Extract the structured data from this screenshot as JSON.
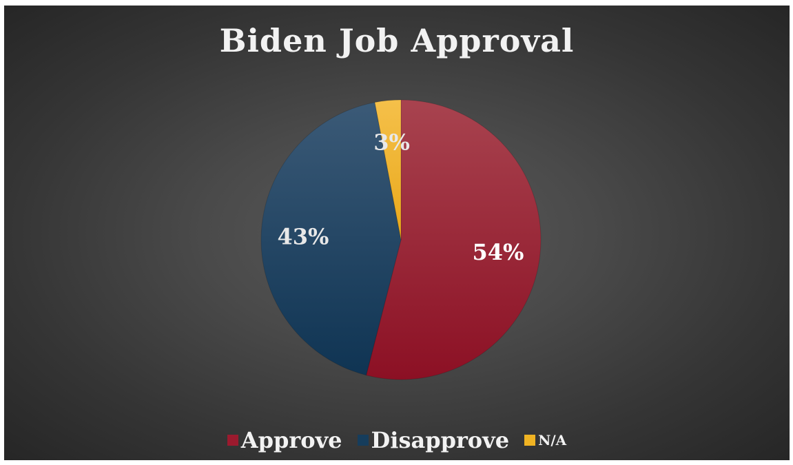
{
  "chart_data": {
    "type": "pie",
    "title": "Biden Job Approval",
    "categories": [
      "Approve",
      "Disapprove",
      "N/A"
    ],
    "values": [
      54,
      43,
      3
    ],
    "data_labels": [
      "54%",
      "43%",
      "3%"
    ],
    "colors": [
      "#9b1a2e",
      "#163d5c",
      "#f0b323"
    ],
    "legend_position": "bottom"
  },
  "legend": {
    "items": [
      {
        "label": "Approve",
        "color": "#9b1a2e"
      },
      {
        "label": "Disapprove",
        "color": "#163d5c"
      },
      {
        "label": "N/A",
        "color": "#f0b323"
      }
    ]
  }
}
